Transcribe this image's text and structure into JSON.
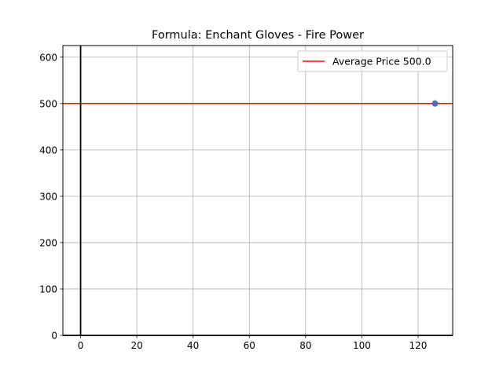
{
  "chart_data": {
    "type": "scatter",
    "title": "Formula: Enchant Gloves - Fire Power",
    "xlabel": "",
    "ylabel": "",
    "xlim": [
      -6.3,
      132.3
    ],
    "ylim": [
      0,
      625
    ],
    "x_ticks": [
      0,
      20,
      40,
      60,
      80,
      100,
      120
    ],
    "y_ticks": [
      0,
      100,
      200,
      300,
      400,
      500,
      600
    ],
    "grid": true,
    "points": [
      {
        "x": 126,
        "y": 500
      }
    ],
    "reference_lines": [
      {
        "orientation": "horizontal",
        "value": 500,
        "label": "Average Price 500.0",
        "color": "#ff0000"
      },
      {
        "orientation": "vertical",
        "value": 0,
        "color": "#000000"
      },
      {
        "orientation": "horizontal",
        "value": 0,
        "color": "#000000"
      }
    ],
    "point_color": "#4c72b0",
    "legend": {
      "placement": "top-right",
      "entries": [
        "Average Price 500.0"
      ]
    }
  }
}
